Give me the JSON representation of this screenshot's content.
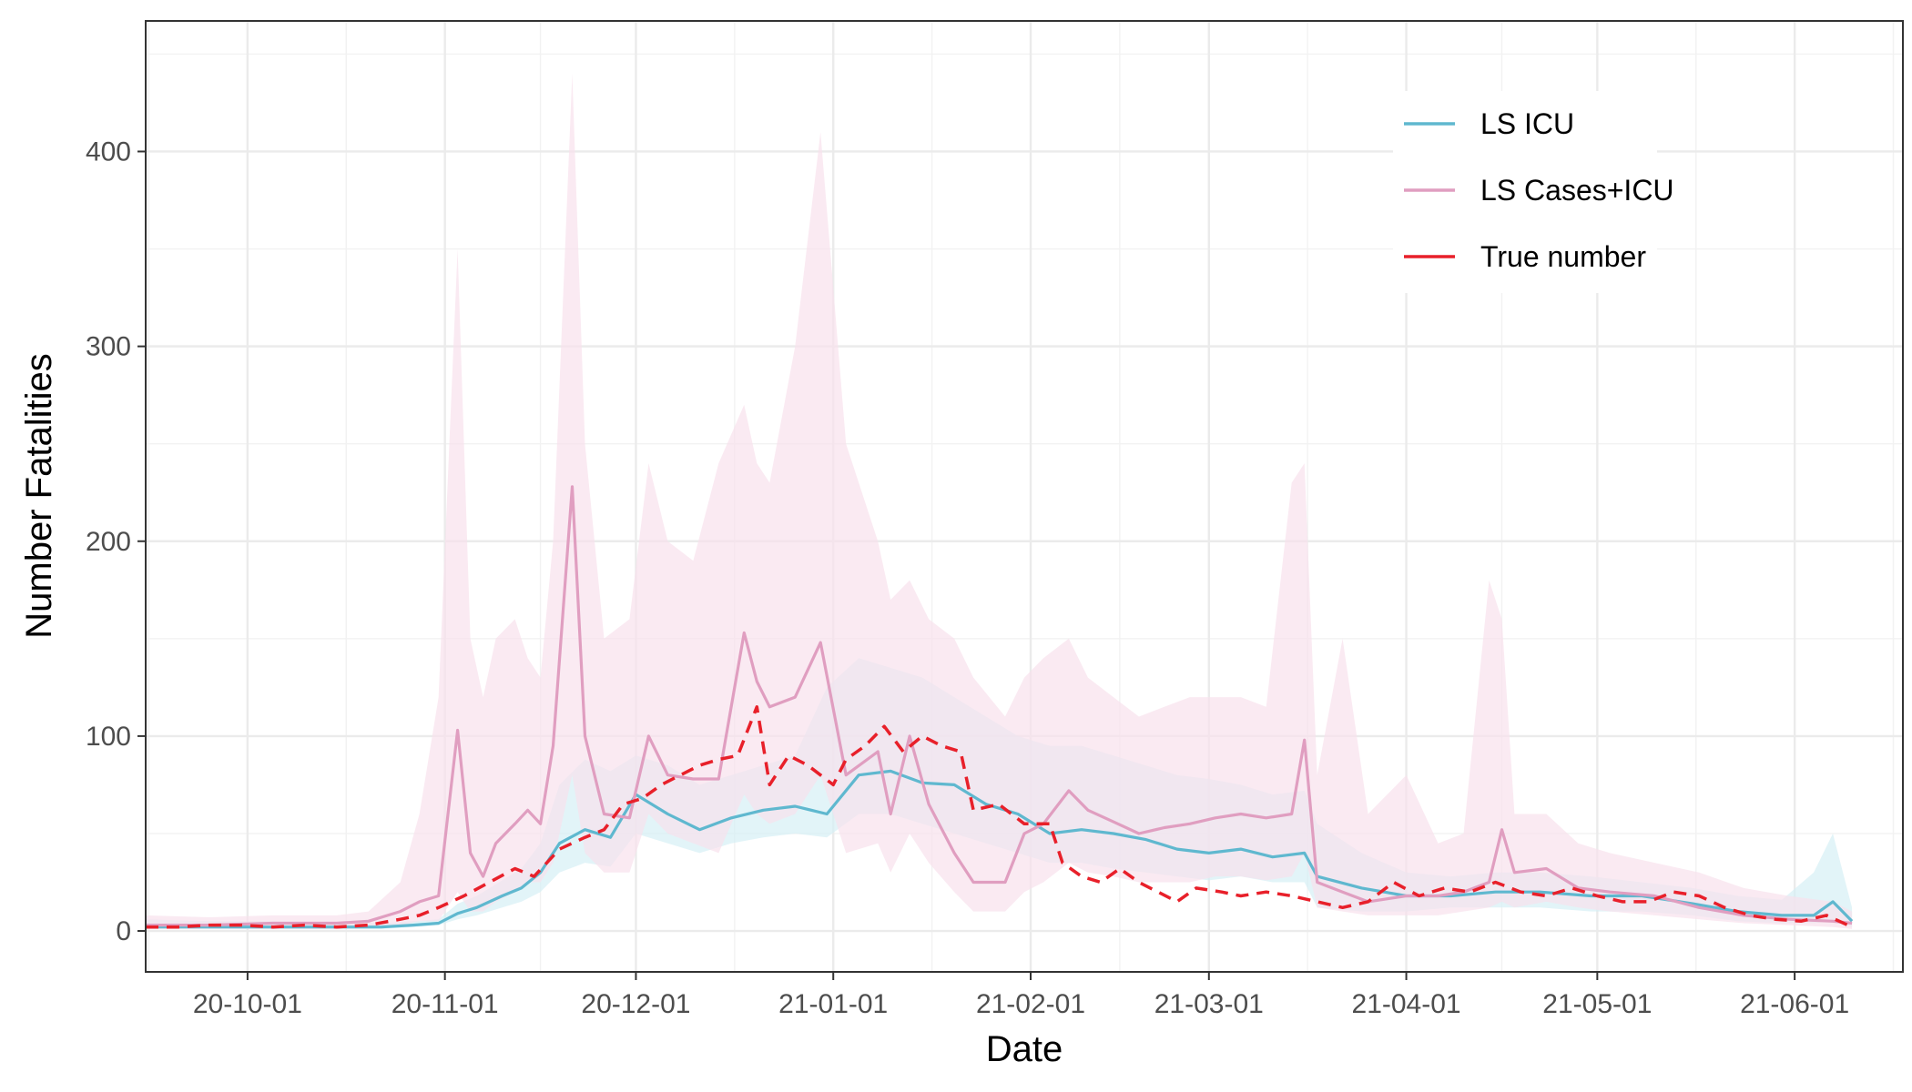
{
  "chart_data": {
    "type": "line",
    "xlabel": "Date",
    "ylabel": "Number Fatalities",
    "xlim": [
      "2020-09-15",
      "2021-06-18"
    ],
    "ylim": [
      -21,
      467
    ],
    "grid": true,
    "legend_position": "top-right",
    "x_ticks": [
      {
        "date": "2020-10-01",
        "label": "20-10-01"
      },
      {
        "date": "2020-11-01",
        "label": "20-11-01"
      },
      {
        "date": "2020-12-01",
        "label": "20-12-01"
      },
      {
        "date": "2021-01-01",
        "label": "21-01-01"
      },
      {
        "date": "2021-02-01",
        "label": "21-02-01"
      },
      {
        "date": "2021-03-01",
        "label": "21-03-01"
      },
      {
        "date": "2021-04-01",
        "label": "21-04-01"
      },
      {
        "date": "2021-05-01",
        "label": "21-05-01"
      },
      {
        "date": "2021-06-01",
        "label": "21-06-01"
      }
    ],
    "y_ticks": [
      0,
      100,
      200,
      300,
      400
    ],
    "series": [
      {
        "name": "LS ICU",
        "color": "#5fb8cf",
        "band_color": "#d6eff5",
        "dashed": false,
        "points": [
          [
            "2020-09-15",
            2,
            1,
            6
          ],
          [
            "2020-09-25",
            2,
            1,
            5
          ],
          [
            "2020-10-05",
            2,
            1,
            5
          ],
          [
            "2020-10-15",
            2,
            1,
            4
          ],
          [
            "2020-10-22",
            2,
            1,
            4
          ],
          [
            "2020-10-27",
            3,
            2,
            5
          ],
          [
            "2020-10-31",
            4,
            3,
            6
          ],
          [
            "2020-11-03",
            9,
            6,
            14
          ],
          [
            "2020-11-06",
            12,
            8,
            18
          ],
          [
            "2020-11-10",
            18,
            12,
            26
          ],
          [
            "2020-11-13",
            22,
            15,
            32
          ],
          [
            "2020-11-16",
            30,
            20,
            45
          ],
          [
            "2020-11-19",
            45,
            30,
            75
          ],
          [
            "2020-11-23",
            52,
            35,
            88
          ],
          [
            "2020-11-27",
            48,
            33,
            82
          ],
          [
            "2020-12-01",
            70,
            50,
            90
          ],
          [
            "2020-12-06",
            60,
            45,
            85
          ],
          [
            "2020-12-11",
            52,
            40,
            75
          ],
          [
            "2020-12-16",
            58,
            45,
            80
          ],
          [
            "2020-12-21",
            62,
            48,
            85
          ],
          [
            "2020-12-26",
            64,
            50,
            90
          ],
          [
            "2020-12-31",
            60,
            48,
            125
          ],
          [
            "2021-01-05",
            80,
            60,
            140
          ],
          [
            "2021-01-10",
            82,
            60,
            135
          ],
          [
            "2021-01-15",
            76,
            55,
            130
          ],
          [
            "2021-01-20",
            75,
            50,
            120
          ],
          [
            "2021-01-25",
            65,
            45,
            110
          ],
          [
            "2021-01-30",
            60,
            40,
            100
          ],
          [
            "2021-02-04",
            50,
            35,
            95
          ],
          [
            "2021-02-09",
            52,
            35,
            95
          ],
          [
            "2021-02-14",
            50,
            32,
            90
          ],
          [
            "2021-02-19",
            47,
            30,
            85
          ],
          [
            "2021-02-24",
            42,
            28,
            80
          ],
          [
            "2021-03-01",
            40,
            26,
            78
          ],
          [
            "2021-03-06",
            42,
            28,
            75
          ],
          [
            "2021-03-11",
            38,
            25,
            70
          ],
          [
            "2021-03-16",
            40,
            25,
            72
          ],
          [
            "2021-03-18",
            28,
            12,
            55
          ],
          [
            "2021-03-25",
            22,
            10,
            40
          ],
          [
            "2021-04-01",
            18,
            10,
            30
          ],
          [
            "2021-04-08",
            18,
            12,
            28
          ],
          [
            "2021-04-15",
            20,
            12,
            30
          ],
          [
            "2021-04-22",
            20,
            12,
            30
          ],
          [
            "2021-04-30",
            18,
            10,
            28
          ],
          [
            "2021-05-08",
            18,
            10,
            25
          ],
          [
            "2021-05-16",
            14,
            8,
            22
          ],
          [
            "2021-05-23",
            10,
            5,
            18
          ],
          [
            "2021-05-30",
            8,
            4,
            16
          ],
          [
            "2021-06-04",
            8,
            4,
            30
          ],
          [
            "2021-06-07",
            15,
            5,
            50
          ],
          [
            "2021-06-10",
            5,
            2,
            12
          ]
        ]
      },
      {
        "name": "LS Cases+ICU",
        "color": "#e09ec0",
        "band_color": "#f8e1ec",
        "dashed": false,
        "points": [
          [
            "2020-09-15",
            3,
            1,
            8
          ],
          [
            "2020-09-25",
            3,
            1,
            7
          ],
          [
            "2020-10-05",
            4,
            1,
            8
          ],
          [
            "2020-10-15",
            4,
            1,
            8
          ],
          [
            "2020-10-20",
            5,
            2,
            10
          ],
          [
            "2020-10-25",
            10,
            3,
            25
          ],
          [
            "2020-10-28",
            15,
            5,
            60
          ],
          [
            "2020-10-31",
            18,
            5,
            120
          ],
          [
            "2020-11-03",
            103,
            20,
            350
          ],
          [
            "2020-11-05",
            40,
            10,
            150
          ],
          [
            "2020-11-07",
            28,
            10,
            120
          ],
          [
            "2020-11-09",
            45,
            15,
            150
          ],
          [
            "2020-11-12",
            55,
            20,
            160
          ],
          [
            "2020-11-14",
            62,
            25,
            140
          ],
          [
            "2020-11-16",
            55,
            25,
            130
          ],
          [
            "2020-11-18",
            95,
            35,
            200
          ],
          [
            "2020-11-21",
            228,
            80,
            440
          ],
          [
            "2020-11-23",
            100,
            40,
            250
          ],
          [
            "2020-11-26",
            60,
            30,
            150
          ],
          [
            "2020-11-30",
            58,
            30,
            160
          ],
          [
            "2020-12-03",
            100,
            60,
            240
          ],
          [
            "2020-12-06",
            80,
            50,
            200
          ],
          [
            "2020-12-10",
            78,
            45,
            190
          ],
          [
            "2020-12-14",
            78,
            40,
            240
          ],
          [
            "2020-12-18",
            153,
            70,
            270
          ],
          [
            "2020-12-20",
            128,
            60,
            240
          ],
          [
            "2020-12-22",
            115,
            55,
            230
          ],
          [
            "2020-12-26",
            120,
            60,
            300
          ],
          [
            "2020-12-30",
            148,
            80,
            410
          ],
          [
            "2021-01-03",
            80,
            40,
            250
          ],
          [
            "2021-01-08",
            92,
            45,
            200
          ],
          [
            "2021-01-10",
            60,
            30,
            170
          ],
          [
            "2021-01-13",
            100,
            50,
            180
          ],
          [
            "2021-01-16",
            65,
            35,
            160
          ],
          [
            "2021-01-20",
            40,
            20,
            150
          ],
          [
            "2021-01-23",
            25,
            10,
            130
          ],
          [
            "2021-01-28",
            25,
            10,
            110
          ],
          [
            "2021-01-31",
            50,
            20,
            130
          ],
          [
            "2021-02-03",
            55,
            25,
            140
          ],
          [
            "2021-02-07",
            72,
            35,
            150
          ],
          [
            "2021-02-10",
            62,
            30,
            130
          ],
          [
            "2021-02-14",
            56,
            28,
            120
          ],
          [
            "2021-02-18",
            50,
            25,
            110
          ],
          [
            "2021-02-22",
            53,
            25,
            115
          ],
          [
            "2021-02-26",
            55,
            25,
            120
          ],
          [
            "2021-03-02",
            58,
            28,
            120
          ],
          [
            "2021-03-06",
            60,
            28,
            120
          ],
          [
            "2021-03-10",
            58,
            26,
            115
          ],
          [
            "2021-03-14",
            60,
            28,
            230
          ],
          [
            "2021-03-16",
            98,
            40,
            240
          ],
          [
            "2021-03-18",
            25,
            12,
            80
          ],
          [
            "2021-03-22",
            20,
            10,
            150
          ],
          [
            "2021-03-26",
            15,
            8,
            60
          ],
          [
            "2021-04-01",
            18,
            8,
            80
          ],
          [
            "2021-04-06",
            18,
            8,
            45
          ],
          [
            "2021-04-10",
            20,
            10,
            50
          ],
          [
            "2021-04-14",
            25,
            12,
            180
          ],
          [
            "2021-04-16",
            52,
            15,
            160
          ],
          [
            "2021-04-18",
            30,
            12,
            60
          ],
          [
            "2021-04-23",
            32,
            15,
            60
          ],
          [
            "2021-04-28",
            22,
            12,
            45
          ],
          [
            "2021-05-03",
            20,
            10,
            40
          ],
          [
            "2021-05-10",
            18,
            8,
            35
          ],
          [
            "2021-05-17",
            12,
            6,
            30
          ],
          [
            "2021-05-24",
            8,
            4,
            22
          ],
          [
            "2021-05-31",
            6,
            3,
            18
          ],
          [
            "2021-06-07",
            5,
            2,
            15
          ],
          [
            "2021-06-10",
            4,
            1,
            10
          ]
        ]
      },
      {
        "name": "True number",
        "color": "#e8202a",
        "dashed": true,
        "points": [
          [
            "2020-09-15",
            2
          ],
          [
            "2020-09-20",
            2
          ],
          [
            "2020-09-25",
            3
          ],
          [
            "2020-09-30",
            3
          ],
          [
            "2020-10-05",
            2
          ],
          [
            "2020-10-10",
            3
          ],
          [
            "2020-10-15",
            2
          ],
          [
            "2020-10-20",
            3
          ],
          [
            "2020-10-25",
            6
          ],
          [
            "2020-10-28",
            8
          ],
          [
            "2020-10-31",
            12
          ],
          [
            "2020-11-04",
            18
          ],
          [
            "2020-11-08",
            25
          ],
          [
            "2020-11-12",
            32
          ],
          [
            "2020-11-15",
            28
          ],
          [
            "2020-11-19",
            42
          ],
          [
            "2020-11-23",
            48
          ],
          [
            "2020-11-26",
            52
          ],
          [
            "2020-11-29",
            65
          ],
          [
            "2020-12-02",
            68
          ],
          [
            "2020-12-05",
            75
          ],
          [
            "2020-12-08",
            80
          ],
          [
            "2020-12-11",
            85
          ],
          [
            "2020-12-14",
            88
          ],
          [
            "2020-12-17",
            90
          ],
          [
            "2020-12-20",
            115
          ],
          [
            "2020-12-22",
            75
          ],
          [
            "2020-12-25",
            90
          ],
          [
            "2020-12-28",
            85
          ],
          [
            "2021-01-01",
            75
          ],
          [
            "2021-01-03",
            88
          ],
          [
            "2021-01-06",
            95
          ],
          [
            "2021-01-09",
            105
          ],
          [
            "2021-01-12",
            92
          ],
          [
            "2021-01-15",
            100
          ],
          [
            "2021-01-18",
            95
          ],
          [
            "2021-01-21",
            92
          ],
          [
            "2021-01-23",
            62
          ],
          [
            "2021-01-27",
            65
          ],
          [
            "2021-01-31",
            55
          ],
          [
            "2021-02-04",
            55
          ],
          [
            "2021-02-06",
            35
          ],
          [
            "2021-02-09",
            28
          ],
          [
            "2021-02-12",
            25
          ],
          [
            "2021-02-15",
            32
          ],
          [
            "2021-02-18",
            25
          ],
          [
            "2021-02-21",
            20
          ],
          [
            "2021-02-24",
            15
          ],
          [
            "2021-02-27",
            22
          ],
          [
            "2021-03-03",
            20
          ],
          [
            "2021-03-06",
            18
          ],
          [
            "2021-03-10",
            20
          ],
          [
            "2021-03-14",
            18
          ],
          [
            "2021-03-18",
            15
          ],
          [
            "2021-03-22",
            12
          ],
          [
            "2021-03-26",
            15
          ],
          [
            "2021-03-30",
            25
          ],
          [
            "2021-04-03",
            18
          ],
          [
            "2021-04-07",
            22
          ],
          [
            "2021-04-11",
            20
          ],
          [
            "2021-04-15",
            25
          ],
          [
            "2021-04-19",
            20
          ],
          [
            "2021-04-23",
            18
          ],
          [
            "2021-04-27",
            22
          ],
          [
            "2021-05-01",
            18
          ],
          [
            "2021-05-05",
            15
          ],
          [
            "2021-05-09",
            15
          ],
          [
            "2021-05-13",
            20
          ],
          [
            "2021-05-17",
            18
          ],
          [
            "2021-05-21",
            12
          ],
          [
            "2021-05-25",
            8
          ],
          [
            "2021-05-29",
            6
          ],
          [
            "2021-06-02",
            5
          ],
          [
            "2021-06-06",
            8
          ],
          [
            "2021-06-10",
            2
          ]
        ]
      }
    ]
  }
}
